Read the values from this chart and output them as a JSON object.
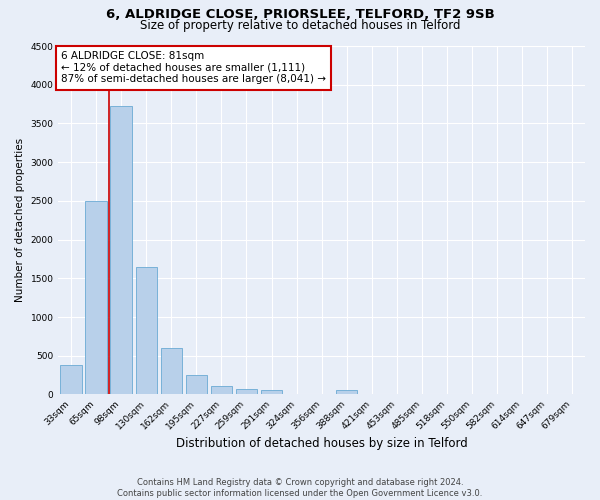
{
  "title_line1": "6, ALDRIDGE CLOSE, PRIORSLEE, TELFORD, TF2 9SB",
  "title_line2": "Size of property relative to detached houses in Telford",
  "xlabel": "Distribution of detached houses by size in Telford",
  "ylabel": "Number of detached properties",
  "bar_labels": [
    "33sqm",
    "65sqm",
    "98sqm",
    "130sqm",
    "162sqm",
    "195sqm",
    "227sqm",
    "259sqm",
    "291sqm",
    "324sqm",
    "356sqm",
    "388sqm",
    "421sqm",
    "453sqm",
    "485sqm",
    "518sqm",
    "550sqm",
    "582sqm",
    "614sqm",
    "647sqm",
    "679sqm"
  ],
  "bar_values": [
    380,
    2500,
    3720,
    1650,
    600,
    250,
    110,
    65,
    60,
    0,
    0,
    60,
    0,
    0,
    0,
    0,
    0,
    0,
    0,
    0,
    0
  ],
  "bar_color": "#b8d0ea",
  "bar_edgecolor": "#6aaad4",
  "ylim": [
    0,
    4500
  ],
  "yticks": [
    0,
    500,
    1000,
    1500,
    2000,
    2500,
    3000,
    3500,
    4000,
    4500
  ],
  "vline_color": "#cc0000",
  "vline_pos": 1.5,
  "annotation_text": "6 ALDRIDGE CLOSE: 81sqm\n← 12% of detached houses are smaller (1,111)\n87% of semi-detached houses are larger (8,041) →",
  "annotation_box_color": "#ffffff",
  "annotation_box_edgecolor": "#cc0000",
  "footer_line1": "Contains HM Land Registry data © Crown copyright and database right 2024.",
  "footer_line2": "Contains public sector information licensed under the Open Government Licence v3.0.",
  "background_color": "#e8eef8",
  "plot_bg_color": "#e8eef8",
  "grid_color": "#ffffff",
  "title1_fontsize": 9.5,
  "title2_fontsize": 8.5,
  "xlabel_fontsize": 8.5,
  "ylabel_fontsize": 7.5,
  "tick_fontsize": 6.5,
  "annot_fontsize": 7.5,
  "footer_fontsize": 6.0
}
